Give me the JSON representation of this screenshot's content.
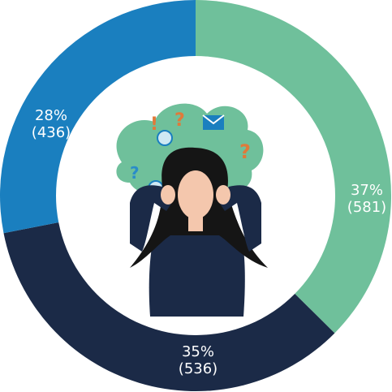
{
  "chart_data": {
    "type": "donut",
    "values": [
      581,
      536,
      436
    ],
    "value_labels": [
      "37%\n(581)",
      "35%\n(536)",
      "28%\n(436)"
    ],
    "colors": [
      "#6fc09b",
      "#1b2a47",
      "#1a7fbf"
    ]
  }
}
